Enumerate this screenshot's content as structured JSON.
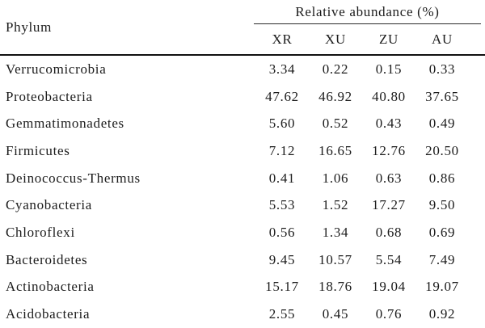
{
  "colors": {
    "background": "#ffffff",
    "text": "#1c1c1c",
    "rule": "#111111"
  },
  "chart_data": {
    "type": "table",
    "row_header": "Phylum",
    "group_header": "Relative abundance (%)",
    "columns": [
      "XR",
      "XU",
      "ZU",
      "AU"
    ],
    "rows": [
      {
        "phylum": "Verrucomicrobia",
        "values": [
          "3.34",
          "0.22",
          "0.15",
          "0.33"
        ]
      },
      {
        "phylum": "Proteobacteria",
        "values": [
          "47.62",
          "46.92",
          "40.80",
          "37.65"
        ]
      },
      {
        "phylum": "Gemmatimonadetes",
        "values": [
          "5.60",
          "0.52",
          "0.43",
          "0.49"
        ]
      },
      {
        "phylum": "Firmicutes",
        "values": [
          "7.12",
          "16.65",
          "12.76",
          "20.50"
        ]
      },
      {
        "phylum": "Deinococcus-Thermus",
        "values": [
          "0.41",
          "1.06",
          "0.63",
          "0.86"
        ]
      },
      {
        "phylum": "Cyanobacteria",
        "values": [
          "5.53",
          "1.52",
          "17.27",
          "9.50"
        ]
      },
      {
        "phylum": "Chloroflexi",
        "values": [
          "0.56",
          "1.34",
          "0.68",
          "0.69"
        ]
      },
      {
        "phylum": "Bacteroidetes",
        "values": [
          "9.45",
          "10.57",
          "5.54",
          "7.49"
        ]
      },
      {
        "phylum": "Actinobacteria",
        "values": [
          "15.17",
          "18.76",
          "19.04",
          "19.07"
        ]
      },
      {
        "phylum": "Acidobacteria",
        "values": [
          "2.55",
          "0.45",
          "0.76",
          "0.92"
        ]
      }
    ]
  }
}
